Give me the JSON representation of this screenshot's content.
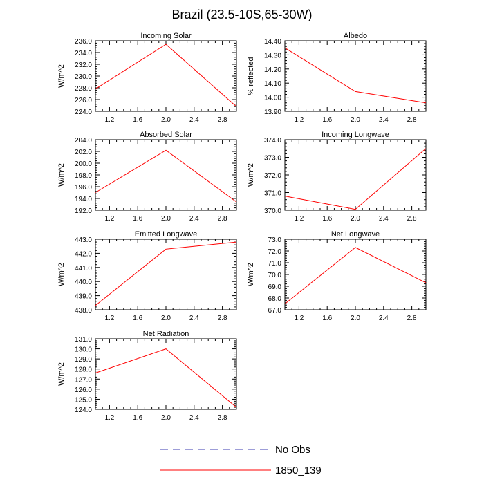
{
  "page_title": "Brazil (23.5-10S,65-30W)",
  "legend": {
    "items": [
      {
        "label": "No Obs",
        "color": "#3b3bb0",
        "style": "dashed"
      },
      {
        "label": "1850_139",
        "color": "#ff0000",
        "style": "solid"
      }
    ]
  },
  "chart_data": [
    {
      "type": "line",
      "title": "Incoming Solar",
      "ylabel": "W/m^2",
      "xlabel": "",
      "xlim": [
        1.0,
        3.0
      ],
      "ylim": [
        224.0,
        236.0
      ],
      "xticks": [
        "1.2",
        "1.6",
        "2.0",
        "2.4",
        "2.8"
      ],
      "yticks": [
        "224.0",
        "226.0",
        "228.0",
        "230.0",
        "232.0",
        "234.0",
        "236.0"
      ],
      "series": [
        {
          "name": "1850_139",
          "color": "#ff0000",
          "x": [
            1.0,
            2.0,
            3.0
          ],
          "values": [
            227.8,
            235.4,
            224.8
          ]
        }
      ]
    },
    {
      "type": "line",
      "title": "Albedo",
      "ylabel": "% reflected",
      "xlabel": "",
      "xlim": [
        1.0,
        3.0
      ],
      "ylim": [
        13.9,
        14.4
      ],
      "xticks": [
        "1.2",
        "1.6",
        "2.0",
        "2.4",
        "2.8"
      ],
      "yticks": [
        "13.90",
        "14.00",
        "14.10",
        "14.20",
        "14.30",
        "14.40"
      ],
      "series": [
        {
          "name": "1850_139",
          "color": "#ff0000",
          "x": [
            1.0,
            2.0,
            3.0
          ],
          "values": [
            14.35,
            14.04,
            13.96
          ]
        }
      ]
    },
    {
      "type": "line",
      "title": "Absorbed Solar",
      "ylabel": "W/m^2",
      "xlabel": "",
      "xlim": [
        1.0,
        3.0
      ],
      "ylim": [
        192.0,
        204.0
      ],
      "xticks": [
        "1.2",
        "1.6",
        "2.0",
        "2.4",
        "2.8"
      ],
      "yticks": [
        "192.0",
        "194.0",
        "196.0",
        "198.0",
        "200.0",
        "202.0",
        "204.0"
      ],
      "series": [
        {
          "name": "1850_139",
          "color": "#ff0000",
          "x": [
            1.0,
            2.0,
            3.0
          ],
          "values": [
            195.0,
            202.2,
            193.4
          ]
        }
      ]
    },
    {
      "type": "line",
      "title": "Incoming Longwave",
      "ylabel": "W/m^2",
      "xlabel": "",
      "xlim": [
        1.0,
        3.0
      ],
      "ylim": [
        370.0,
        374.0
      ],
      "xticks": [
        "1.2",
        "1.6",
        "2.0",
        "2.4",
        "2.8"
      ],
      "yticks": [
        "370.0",
        "371.0",
        "372.0",
        "373.0",
        "374.0"
      ],
      "series": [
        {
          "name": "1850_139",
          "color": "#ff0000",
          "x": [
            1.0,
            2.0,
            3.0
          ],
          "values": [
            370.8,
            370.05,
            373.5
          ]
        }
      ]
    },
    {
      "type": "line",
      "title": "Emitted Longwave",
      "ylabel": "W/m^2",
      "xlabel": "",
      "xlim": [
        1.0,
        3.0
      ],
      "ylim": [
        438.0,
        443.0
      ],
      "xticks": [
        "1.2",
        "1.6",
        "2.0",
        "2.4",
        "2.8"
      ],
      "yticks": [
        "438.0",
        "439.0",
        "440.0",
        "441.0",
        "442.0",
        "443.0"
      ],
      "series": [
        {
          "name": "1850_139",
          "color": "#ff0000",
          "x": [
            1.0,
            2.0,
            3.0
          ],
          "values": [
            438.3,
            442.3,
            442.8
          ]
        }
      ]
    },
    {
      "type": "line",
      "title": "Net Longwave",
      "ylabel": "W/m^2",
      "xlabel": "",
      "xlim": [
        1.0,
        3.0
      ],
      "ylim": [
        67.0,
        73.0
      ],
      "xticks": [
        "1.2",
        "1.6",
        "2.0",
        "2.4",
        "2.8"
      ],
      "yticks": [
        "67.0",
        "68.0",
        "69.0",
        "70.0",
        "71.0",
        "72.0",
        "73.0"
      ],
      "series": [
        {
          "name": "1850_139",
          "color": "#ff0000",
          "x": [
            1.0,
            2.0,
            3.0
          ],
          "values": [
            67.5,
            72.3,
            69.3
          ]
        }
      ]
    },
    {
      "type": "line",
      "title": "Net Radiation",
      "ylabel": "W/m^2",
      "xlabel": "",
      "xlim": [
        1.0,
        3.0
      ],
      "ylim": [
        124.0,
        131.0
      ],
      "xticks": [
        "1.2",
        "1.6",
        "2.0",
        "2.4",
        "2.8"
      ],
      "yticks": [
        "124.0",
        "125.0",
        "126.0",
        "127.0",
        "128.0",
        "129.0",
        "130.0",
        "131.0"
      ],
      "series": [
        {
          "name": "1850_139",
          "color": "#ff0000",
          "x": [
            1.0,
            2.0,
            3.0
          ],
          "values": [
            127.6,
            130.0,
            124.2
          ]
        }
      ]
    }
  ]
}
